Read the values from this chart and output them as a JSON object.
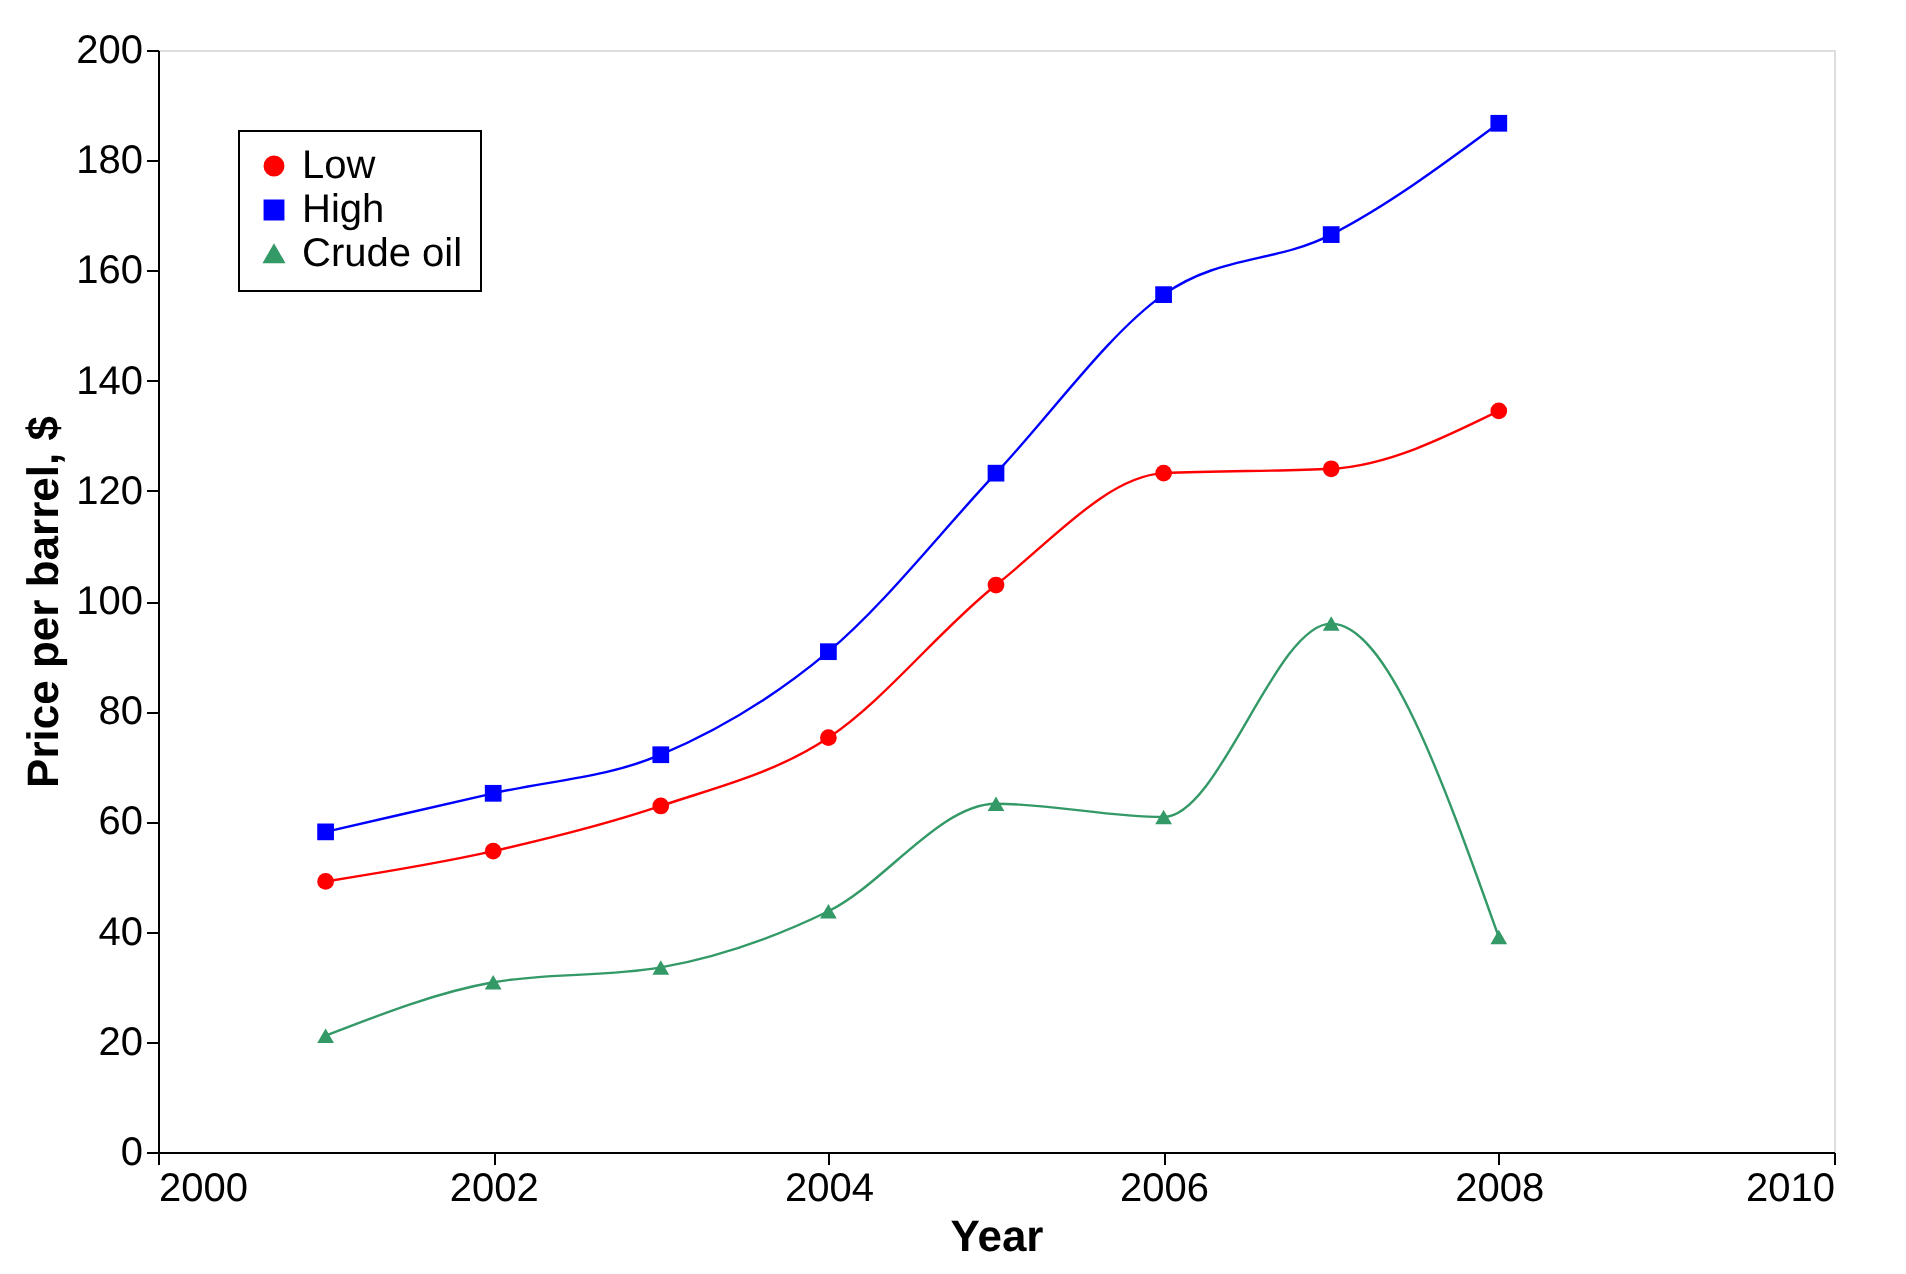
{
  "chart_data": {
    "type": "line",
    "xlabel": "Year",
    "ylabel": "Price per barrel, $",
    "x": [
      2001,
      2002,
      2003,
      2004,
      2005,
      2006,
      2007,
      2008
    ],
    "series": [
      {
        "name": "Low",
        "color": "#ff0000",
        "marker": "circle",
        "values": [
          49.1,
          54.6,
          62.8,
          75.2,
          102.9,
          123.2,
          124,
          134.5
        ]
      },
      {
        "name": "High",
        "color": "#0000ff",
        "marker": "square",
        "values": [
          58.1,
          65.1,
          72.1,
          90.8,
          123.2,
          155.6,
          166.5,
          186.7
        ]
      },
      {
        "name": "Crude oil",
        "color": "#339966",
        "marker": "triangle",
        "values": [
          21.1,
          30.8,
          33.5,
          43.7,
          63.2,
          60.8,
          95.9,
          39
        ]
      }
    ],
    "xlim": [
      2000,
      2010
    ],
    "xticks": [
      2000,
      2002,
      2004,
      2006,
      2008,
      2010
    ],
    "ylim": [
      0,
      200
    ],
    "yticks": [
      0,
      20,
      40,
      60,
      80,
      100,
      120,
      140,
      160,
      180,
      200
    ],
    "grid": false,
    "legend": "top left",
    "line_style": "solid"
  }
}
